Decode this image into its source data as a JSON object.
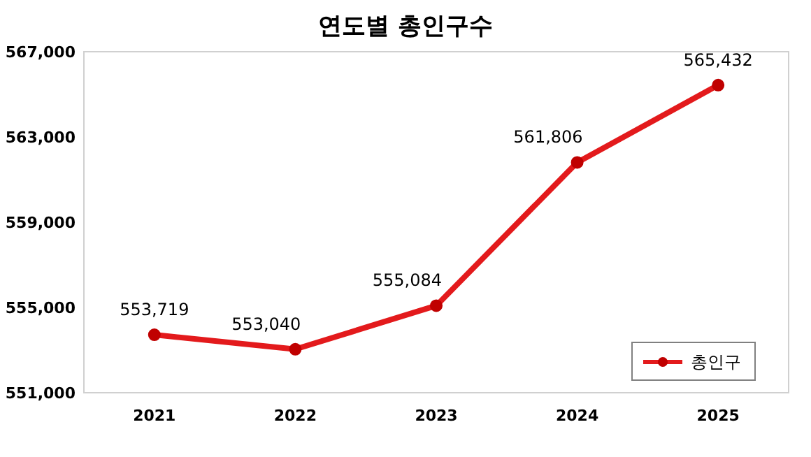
{
  "chart_data": {
    "type": "line",
    "title": "연도별 총인구수",
    "categories": [
      "2021",
      "2022",
      "2023",
      "2024",
      "2025"
    ],
    "series": [
      {
        "name": "총인구",
        "color": "#e31a1c",
        "values": [
          553719,
          553040,
          555084,
          561806,
          565432
        ],
        "value_labels": [
          "553,719",
          "553,040",
          "555,084",
          "561,806",
          "565,432"
        ]
      }
    ],
    "ylim": [
      551000,
      567000
    ],
    "yticks": [
      {
        "value": 551000,
        "label": "551,000"
      },
      {
        "value": 555000,
        "label": "555,000"
      },
      {
        "value": 559000,
        "label": "559,000"
      },
      {
        "value": 563000,
        "label": "563,000"
      },
      {
        "value": 567000,
        "label": "567,000"
      }
    ],
    "grid": false,
    "legend": "bottom right",
    "marker": "circle",
    "line_style": "solid"
  }
}
